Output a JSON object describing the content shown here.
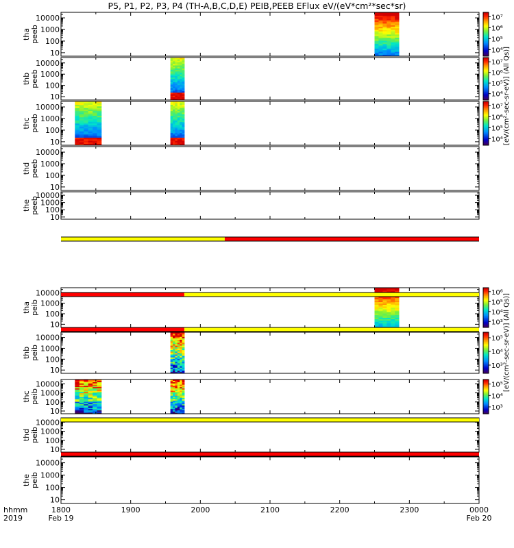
{
  "title": "P5, P1, P2, P3, P4 (TH-A,B,C,D,E) PEIB,PEEB EFlux eV/(eV*cm²*sec*sr)",
  "time_axis": {
    "row1_labels": [
      "hhmm",
      "1800",
      "1900",
      "2000",
      "2100",
      "2200",
      "2300",
      "0000"
    ],
    "row2_labels": [
      "2019",
      "Feb 19",
      "Feb 20"
    ]
  },
  "colorbar_labels": {
    "electrons": "[eV/(cm²-sec-sr-eV)] (All Qs)]",
    "ions": "[eV/(cm²-sec-sr-eV)] (All Qs)]"
  },
  "chart_data": {
    "type": "heatmap",
    "x_unit": "UT hour (18.0 = 1800 Feb 19, 24.0 = 0000 Feb 20)",
    "xlim": [
      18.0,
      24.0
    ],
    "ylim_eV": [
      5,
      30000
    ],
    "y_scale": "log",
    "y_ticks": [
      "10",
      "100",
      "1000",
      "10000"
    ],
    "panels": [
      {
        "probe": "tha",
        "species": "peeb",
        "label": [
          "tha",
          "peeb"
        ],
        "blocks": [
          {
            "x0": 22.5,
            "x1": 22.85,
            "kind": "electron_hot"
          }
        ],
        "colorbar": {
          "ticks": [
            "10⁴",
            "10⁵",
            "10⁶",
            "10⁷"
          ]
        }
      },
      {
        "probe": "thb",
        "species": "peeb",
        "label": [
          "thb",
          "peeb"
        ],
        "blocks": [
          {
            "x0": 19.57,
            "x1": 19.77,
            "kind": "electron_mid"
          }
        ],
        "colorbar": {
          "ticks": [
            "10⁴",
            "10⁵",
            "10⁶",
            "10⁷"
          ]
        }
      },
      {
        "probe": "thc",
        "species": "peeb",
        "label": [
          "thc",
          "peeb"
        ],
        "blocks": [
          {
            "x0": 18.2,
            "x1": 18.58,
            "kind": "electron_mid"
          },
          {
            "x0": 19.57,
            "x1": 19.77,
            "kind": "electron_mid"
          }
        ],
        "colorbar": {
          "ticks": [
            "10⁴",
            "10⁵",
            "10⁶",
            "10⁷"
          ]
        }
      },
      {
        "probe": "thd",
        "species": "peeb",
        "label": [
          "thd",
          "peeb"
        ],
        "blocks": []
      },
      {
        "probe": "the",
        "species": "peeb",
        "label": [
          "the",
          "peeb"
        ],
        "blocks": []
      },
      {
        "probe": "tha",
        "species": "peib",
        "label": [
          "tha",
          "peib"
        ],
        "blocks": [
          {
            "x0": 22.5,
            "x1": 22.85,
            "kind": "ion_hot"
          }
        ],
        "colorbar": {
          "ticks": [
            "10³",
            "10⁴",
            "10⁵",
            "10⁶"
          ]
        }
      },
      {
        "probe": "thb",
        "species": "peib",
        "label": [
          "thb",
          "peib"
        ],
        "blocks": [
          {
            "x0": 19.57,
            "x1": 19.77,
            "kind": "ion_mid"
          }
        ],
        "colorbar": {
          "ticks": [
            "10³",
            "10⁴",
            "10⁵"
          ]
        }
      },
      {
        "probe": "thc",
        "species": "peib",
        "label": [
          "thc",
          "peib"
        ],
        "blocks": [
          {
            "x0": 18.2,
            "x1": 18.58,
            "kind": "ion_patchy"
          },
          {
            "x0": 19.57,
            "x1": 19.77,
            "kind": "ion_patchy"
          }
        ],
        "colorbar": {
          "ticks": [
            "10³",
            "10⁴",
            "10⁵"
          ]
        }
      },
      {
        "probe": "thd",
        "species": "peib",
        "label": [
          "thd",
          "peib"
        ],
        "blocks": []
      },
      {
        "probe": "the",
        "species": "peib",
        "label": [
          "the",
          "peib"
        ],
        "blocks": []
      }
    ],
    "mode_bars": [
      {
        "after_panel": 4,
        "segments": [
          {
            "x0": 18.0,
            "x1": 20.35,
            "color": "#ffff00"
          },
          {
            "x0": 20.35,
            "x1": 24.0,
            "color": "#ff0000"
          }
        ]
      },
      {
        "after_panel": 5,
        "segments": [
          {
            "x0": 18.0,
            "x1": 19.77,
            "color": "#ff0000"
          },
          {
            "x0": 19.77,
            "x1": 24.0,
            "color": "#ffff00"
          }
        ]
      },
      {
        "after_panel": 6,
        "segments": [
          {
            "x0": 18.0,
            "x1": 19.77,
            "color": "#ff0000"
          },
          {
            "x0": 19.77,
            "x1": 24.0,
            "color": "#ffff00"
          }
        ]
      },
      {
        "after_panel": 7,
        "segments": [
          {
            "x0": 18.0,
            "x1": 24.0,
            "color": "#ffff00"
          }
        ]
      },
      {
        "after_panel": 8,
        "segments": [
          {
            "x0": 18.0,
            "x1": 24.0,
            "color": "#ff0000"
          }
        ]
      }
    ]
  }
}
